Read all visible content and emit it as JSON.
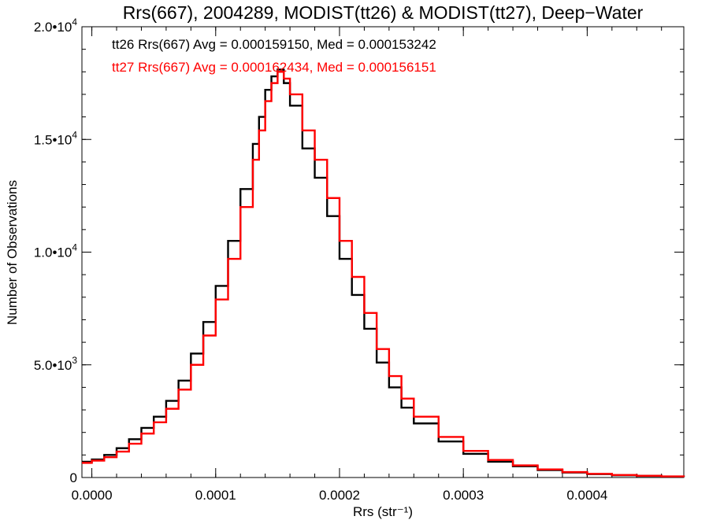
{
  "chart_data": {
    "type": "histogram-step",
    "title": "Rrs(667), 2004289, MODIST(tt26) & MODIST(tt27), Deep−Water",
    "xlabel": "Rrs (str⁻¹)",
    "ylabel": "Number of Observations",
    "xlim": [
      -8e-06,
      0.000478
    ],
    "ylim": [
      0,
      20000
    ],
    "x_ticks": [
      0.0,
      0.0001,
      0.0002,
      0.0003,
      0.0004
    ],
    "x_tick_labels": [
      "0.0000",
      "0.0001",
      "0.0002",
      "0.0003",
      "0.0004"
    ],
    "y_ticks": [
      0,
      5000,
      10000,
      15000,
      20000
    ],
    "y_tick_labels": [
      {
        "base": "0",
        "exp": ""
      },
      {
        "base": "5.0•10",
        "exp": "3"
      },
      {
        "base": "1.0•10",
        "exp": "4"
      },
      {
        "base": "1.5•10",
        "exp": "4"
      },
      {
        "base": "2.0•10",
        "exp": "4"
      }
    ],
    "annotations": [
      {
        "text": "tt26 Rrs(667) Avg = 0.000159150, Med = 0.000153242",
        "color": "#000000"
      },
      {
        "text": "tt27 Rrs(667) Avg = 0.000162434, Med = 0.000156151",
        "color": "#ff0000"
      }
    ],
    "series": [
      {
        "color": "#000000",
        "x": [
          -8e-06,
          0.0,
          1e-05,
          2e-05,
          3e-05,
          4e-05,
          5e-05,
          6e-05,
          7e-05,
          8e-05,
          9e-05,
          0.0001,
          0.00011,
          0.00012,
          0.00013,
          0.000135,
          0.00014,
          0.000145,
          0.00015,
          0.000155,
          0.00016,
          0.00017,
          0.00018,
          0.00019,
          0.0002,
          0.00021,
          0.00022,
          0.00023,
          0.00024,
          0.00025,
          0.00026,
          0.00028,
          0.0003,
          0.00032,
          0.00034,
          0.00036,
          0.00038,
          0.0004,
          0.00042,
          0.00044,
          0.00046,
          0.000478
        ],
        "y": [
          700,
          800,
          1000,
          1300,
          1700,
          2200,
          2700,
          3400,
          4300,
          5500,
          6900,
          8500,
          10500,
          12800,
          14800,
          16000,
          17200,
          17800,
          18100,
          17500,
          16500,
          14600,
          13300,
          11600,
          9700,
          8100,
          6600,
          5100,
          4000,
          3100,
          2400,
          1600,
          1050,
          700,
          500,
          330,
          220,
          150,
          100,
          70,
          45,
          25
        ]
      },
      {
        "color": "#ff0000",
        "x": [
          -8e-06,
          0.0,
          1e-05,
          2e-05,
          3e-05,
          4e-05,
          5e-05,
          6e-05,
          7e-05,
          8e-05,
          9e-05,
          0.0001,
          0.00011,
          0.00012,
          0.00013,
          0.000135,
          0.00014,
          0.000145,
          0.00015,
          0.000155,
          0.00016,
          0.00017,
          0.00018,
          0.00019,
          0.0002,
          0.00021,
          0.00022,
          0.00023,
          0.00024,
          0.00025,
          0.00026,
          0.00028,
          0.0003,
          0.00032,
          0.00034,
          0.00036,
          0.00038,
          0.0004,
          0.00042,
          0.00044,
          0.00046,
          0.000478
        ],
        "y": [
          650,
          750,
          900,
          1150,
          1500,
          1950,
          2450,
          3050,
          3900,
          5000,
          6300,
          7900,
          9700,
          12000,
          14100,
          15400,
          16700,
          17500,
          18000,
          17700,
          17000,
          15400,
          14100,
          12400,
          10500,
          8900,
          7300,
          5700,
          4500,
          3500,
          2700,
          1800,
          1180,
          780,
          540,
          360,
          240,
          165,
          110,
          75,
          50,
          28
        ]
      }
    ]
  }
}
